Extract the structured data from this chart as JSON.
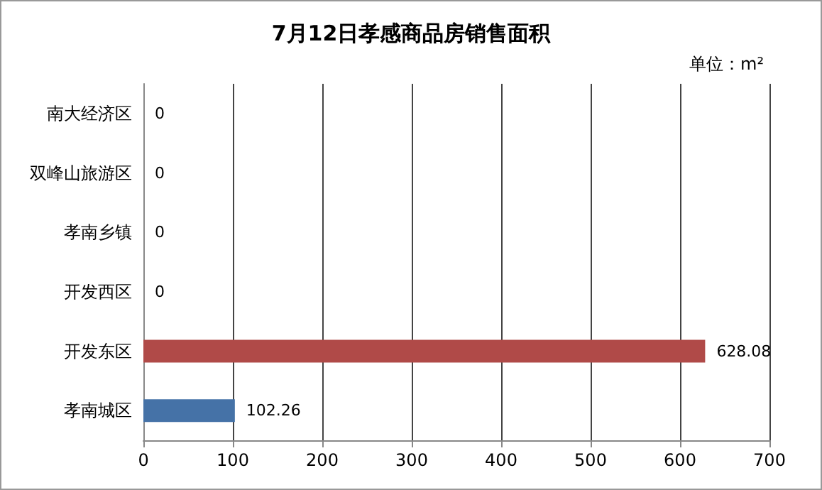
{
  "chart_data": {
    "type": "bar",
    "orientation": "horizontal",
    "title": "7月12日孝感商品房销售面积",
    "annotations": [
      "单位：m²"
    ],
    "categories": [
      "南大经济区",
      "双峰山旅游区",
      "孝南乡镇",
      "开发西区",
      "开发东区",
      "孝南城区"
    ],
    "values": [
      0,
      0,
      0,
      0,
      628.08,
      102.26
    ],
    "colors": [
      "#b04a48",
      "#b04a48",
      "#b04a48",
      "#b04a48",
      "#b04a48",
      "#4572a7"
    ],
    "xlim": [
      0,
      700
    ],
    "xticks": [
      0,
      100,
      200,
      300,
      400,
      500,
      600,
      700
    ],
    "grid": "x",
    "data_labels": true
  }
}
